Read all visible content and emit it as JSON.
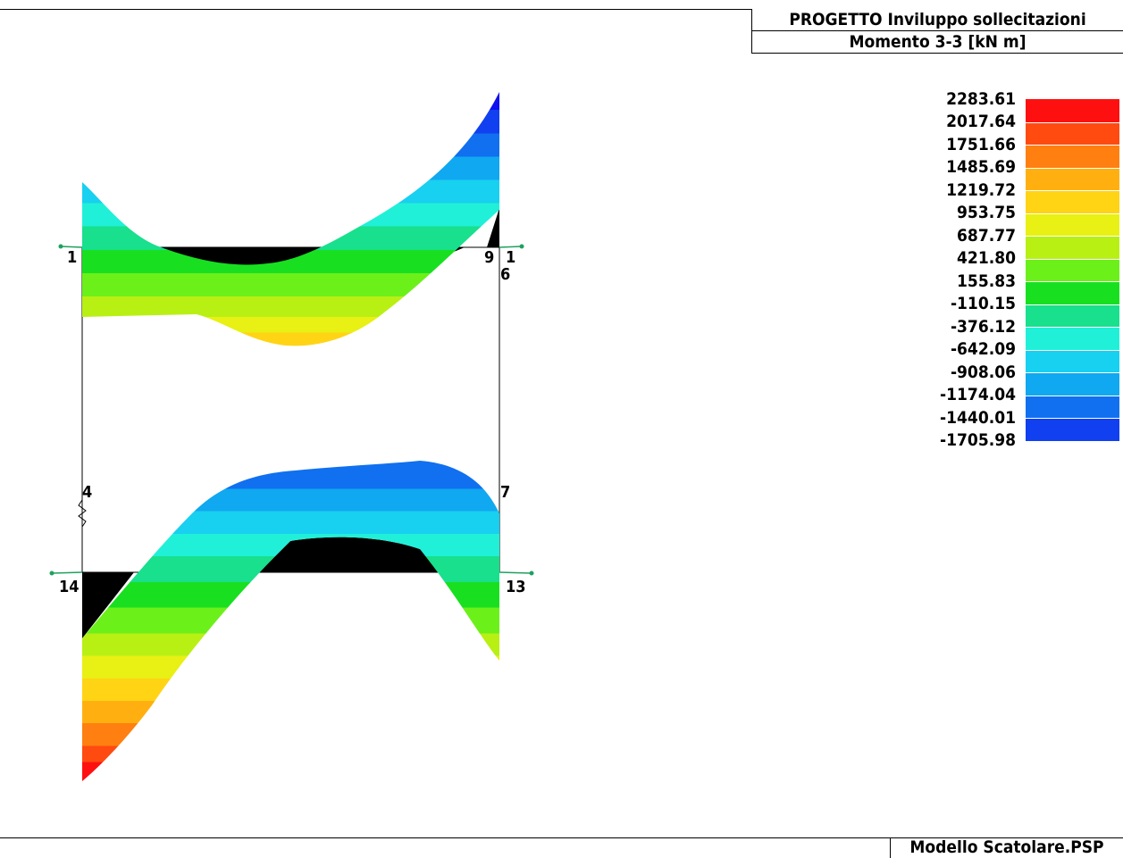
{
  "header": {
    "title": "PROGETTO   Inviluppo sollecitazioni",
    "subtitle": "Momento 3-3 [kN  m]"
  },
  "footer": {
    "filename": "Modello Scatolare.PSP"
  },
  "legend": {
    "values": [
      "2283.61",
      "2017.64",
      "1751.66",
      "1485.69",
      "1219.72",
      "953.75",
      "687.77",
      "421.80",
      "155.83",
      "-110.15",
      "-376.12",
      "-642.09",
      "-908.06",
      "-1174.04",
      "-1440.01",
      "-1705.98"
    ],
    "colors": [
      "#ff1010",
      "#ff4a10",
      "#ff7f10",
      "#ffb010",
      "#ffd414",
      "#e8f014",
      "#b8f014",
      "#6cf01a",
      "#18e020",
      "#18e08c",
      "#20f0d8",
      "#18d0f0",
      "#10a8f0",
      "#1070f0",
      "#1040f0",
      "#1010f0"
    ]
  },
  "nodes": {
    "n1": "1",
    "n9": "9",
    "n1b": "1",
    "n6": "6",
    "n4": "4",
    "n7": "7",
    "n14": "14",
    "n13": "13"
  }
}
